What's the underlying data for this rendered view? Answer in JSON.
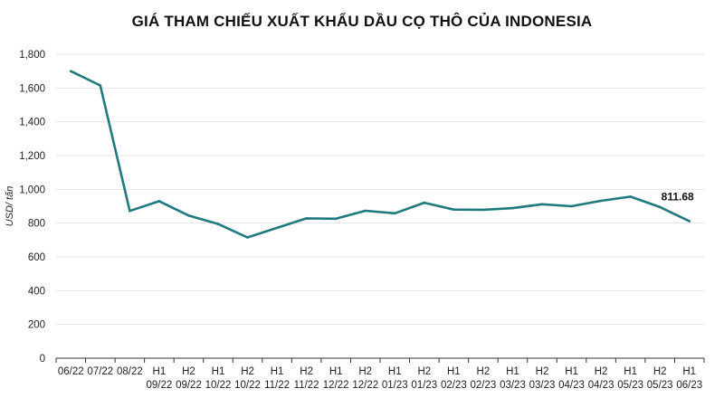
{
  "chart_data": {
    "type": "line",
    "title": "GIÁ THAM CHIẾU XUẤT KHẨU DẦU CỌ THÔ CỦA INDONESIA",
    "xlabel": "",
    "ylabel": "USD/ tấn",
    "ylim": [
      0,
      1800
    ],
    "yticks": [
      "0",
      "200",
      "400",
      "600",
      "800",
      "1,000",
      "1,200",
      "1,400",
      "1,600",
      "1,800"
    ],
    "grid": true,
    "line_color": "#1f7a80",
    "categories": [
      {
        "line1": "06/22",
        "line2": ""
      },
      {
        "line1": "07/22",
        "line2": ""
      },
      {
        "line1": "08/22",
        "line2": ""
      },
      {
        "line1": "H1",
        "line2": "09/22"
      },
      {
        "line1": "H2",
        "line2": "09/22"
      },
      {
        "line1": "H1",
        "line2": "10/22"
      },
      {
        "line1": "H2",
        "line2": "10/22"
      },
      {
        "line1": "H1",
        "line2": "11/22"
      },
      {
        "line1": "H2",
        "line2": "11/22"
      },
      {
        "line1": "H1",
        "line2": "12/22"
      },
      {
        "line1": "H2",
        "line2": "12/22"
      },
      {
        "line1": "H1",
        "line2": "01/23"
      },
      {
        "line1": "H2",
        "line2": "01/23"
      },
      {
        "line1": "H1",
        "line2": "02/23"
      },
      {
        "line1": "H2",
        "line2": "02/23"
      },
      {
        "line1": "H1",
        "line2": "03/23"
      },
      {
        "line1": "H2",
        "line2": "03/23"
      },
      {
        "line1": "H1",
        "line2": "04/23"
      },
      {
        "line1": "H2",
        "line2": "04/23"
      },
      {
        "line1": "H1",
        "line2": "05/23"
      },
      {
        "line1": "H2",
        "line2": "05/23"
      },
      {
        "line1": "H1",
        "line2": "06/23"
      }
    ],
    "values": [
      1700,
      1615,
      872,
      930,
      845,
      795,
      715,
      772,
      828,
      826,
      873,
      858,
      921,
      880,
      879,
      889,
      912,
      900,
      932,
      957,
      895,
      811.68
    ],
    "data_labels": [
      {
        "index": 21,
        "text": "811.68"
      }
    ]
  }
}
